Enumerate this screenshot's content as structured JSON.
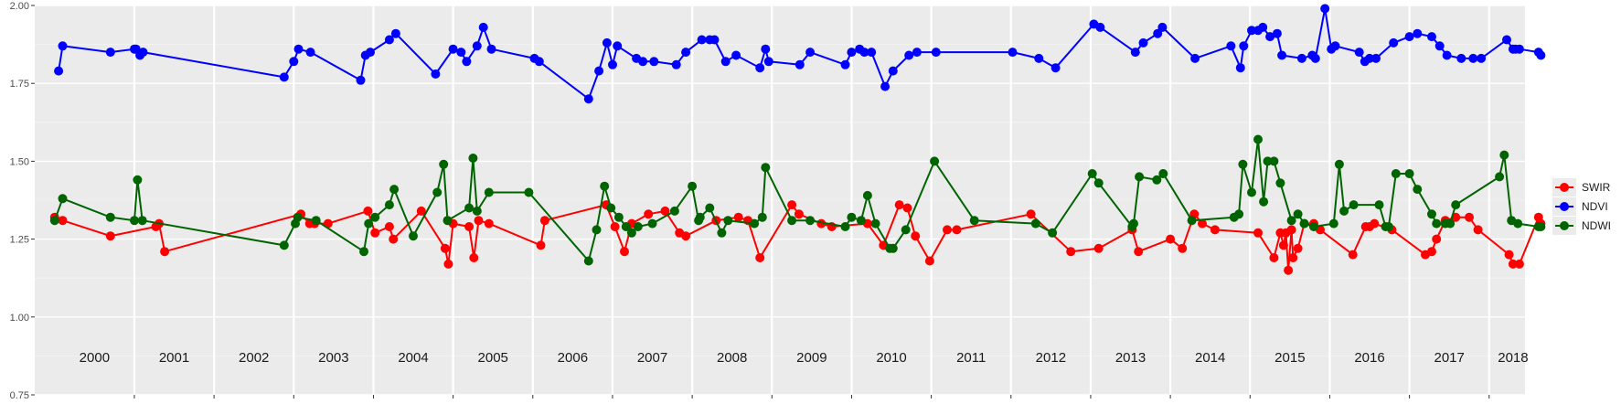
{
  "chart_data": {
    "type": "line",
    "title": "",
    "xlabel": "",
    "ylabel": "",
    "xlim": [
      1999.75,
      2018.45
    ],
    "ylim": [
      0.75,
      2.0
    ],
    "y_ticks": [
      "0.75",
      "1.00",
      "1.25",
      "1.50",
      "1.75",
      "2.00"
    ],
    "year_labels": [
      "2000",
      "2001",
      "2002",
      "2003",
      "2004",
      "2005",
      "2006",
      "2007",
      "2008",
      "2009",
      "2010",
      "2011",
      "2012",
      "2013",
      "2014",
      "2015",
      "2016",
      "2017",
      "2018"
    ],
    "grid": true,
    "legend_position": "right",
    "series": [
      {
        "name": "SWIR",
        "color": "#ff0000",
        "x": [
          2000.0,
          2000.1,
          2000.7,
          2001.27,
          2001.31,
          2001.38,
          2003.09,
          2003.2,
          2003.26,
          2003.43,
          2003.93,
          2004.02,
          2004.2,
          2004.25,
          2004.6,
          2004.9,
          2004.94,
          2005.0,
          2005.2,
          2005.26,
          2005.32,
          2005.45,
          2006.1,
          2006.15,
          2006.92,
          2007.03,
          2007.15,
          2007.24,
          2007.45,
          2007.66,
          2007.84,
          2007.92,
          2008.3,
          2008.58,
          2008.7,
          2008.85,
          2009.25,
          2009.34,
          2009.62,
          2009.75,
          2010.2,
          2010.4,
          2010.6,
          2010.7,
          2010.8,
          2010.98,
          2011.2,
          2011.32,
          2012.25,
          2012.75,
          2013.1,
          2013.52,
          2013.6,
          2014.0,
          2014.15,
          2014.3,
          2014.4,
          2014.56,
          2015.1,
          2015.3,
          2015.38,
          2015.42,
          2015.45,
          2015.48,
          2015.52,
          2015.54,
          2015.6,
          2015.68,
          2015.8,
          2015.88,
          2016.29,
          2016.45,
          2016.5,
          2016.56,
          2016.78,
          2017.2,
          2017.28,
          2017.34,
          2017.45,
          2017.58,
          2017.75,
          2017.86,
          2018.25,
          2018.3,
          2018.38,
          2018.62,
          2018.65
        ],
        "y": [
          1.32,
          1.31,
          1.26,
          1.29,
          1.3,
          1.21,
          1.33,
          1.3,
          1.3,
          1.3,
          1.34,
          1.27,
          1.29,
          1.25,
          1.34,
          1.22,
          1.17,
          1.3,
          1.29,
          1.19,
          1.31,
          1.3,
          1.23,
          1.31,
          1.36,
          1.29,
          1.21,
          1.3,
          1.33,
          1.34,
          1.27,
          1.26,
          1.31,
          1.32,
          1.31,
          1.19,
          1.36,
          1.33,
          1.3,
          1.29,
          1.3,
          1.23,
          1.36,
          1.35,
          1.26,
          1.18,
          1.28,
          1.28,
          1.33,
          1.21,
          1.22,
          1.28,
          1.21,
          1.25,
          1.22,
          1.33,
          1.3,
          1.28,
          1.27,
          1.19,
          1.27,
          1.23,
          1.27,
          1.15,
          1.28,
          1.19,
          1.22,
          1.3,
          1.3,
          1.28,
          1.2,
          1.29,
          1.29,
          1.3,
          1.28,
          1.2,
          1.21,
          1.25,
          1.31,
          1.32,
          1.32,
          1.28,
          1.2,
          1.17,
          1.17,
          1.32,
          1.3
        ],
        "note_y_source": "values read off y-axis"
      },
      {
        "name": "NDVI",
        "color": "#0000ff",
        "x": [
          2000.05,
          2000.1,
          2000.7,
          2001.0,
          2001.02,
          2001.07,
          2001.11,
          2002.88,
          2003.0,
          2003.06,
          2003.21,
          2003.84,
          2003.9,
          2003.96,
          2004.2,
          2004.28,
          2004.78,
          2005.0,
          2005.1,
          2005.17,
          2005.3,
          2005.38,
          2005.48,
          2006.02,
          2006.08,
          2006.7,
          2006.83,
          2006.93,
          2007.0,
          2007.06,
          2007.3,
          2007.38,
          2007.52,
          2007.8,
          2007.92,
          2008.12,
          2008.22,
          2008.28,
          2008.42,
          2008.55,
          2008.85,
          2008.92,
          2008.96,
          2009.35,
          2009.48,
          2009.92,
          2010.0,
          2010.1,
          2010.16,
          2010.25,
          2010.42,
          2010.52,
          2010.72,
          2010.82,
          2011.06,
          2012.02,
          2012.35,
          2012.56,
          2013.04,
          2013.12,
          2013.56,
          2013.66,
          2013.84,
          2013.9,
          2014.31,
          2014.76,
          2014.88,
          2014.92,
          2015.02,
          2015.1,
          2015.16,
          2015.25,
          2015.34,
          2015.4,
          2015.65,
          2015.78,
          2015.82,
          2015.94,
          2016.02,
          2016.07,
          2016.37,
          2016.44,
          2016.5,
          2016.58,
          2016.8,
          2017.0,
          2017.1,
          2017.28,
          2017.38,
          2017.47,
          2017.65,
          2017.8,
          2017.9,
          2018.22,
          2018.3,
          2018.33,
          2018.38,
          2018.62,
          2018.65
        ],
        "y": [
          1.79,
          1.87,
          1.85,
          1.86,
          1.86,
          1.84,
          1.85,
          1.77,
          1.82,
          1.86,
          1.85,
          1.76,
          1.84,
          1.85,
          1.89,
          1.91,
          1.78,
          1.86,
          1.85,
          1.82,
          1.87,
          1.93,
          1.86,
          1.83,
          1.82,
          1.7,
          1.79,
          1.88,
          1.81,
          1.87,
          1.83,
          1.82,
          1.82,
          1.81,
          1.85,
          1.89,
          1.89,
          1.89,
          1.82,
          1.84,
          1.8,
          1.86,
          1.82,
          1.81,
          1.85,
          1.81,
          1.85,
          1.86,
          1.85,
          1.85,
          1.74,
          1.79,
          1.84,
          1.85,
          1.85,
          1.85,
          1.83,
          1.8,
          1.94,
          1.93,
          1.85,
          1.88,
          1.91,
          1.93,
          1.83,
          1.87,
          1.8,
          1.87,
          1.92,
          1.92,
          1.93,
          1.9,
          1.91,
          1.84,
          1.83,
          1.84,
          1.83,
          1.99,
          1.86,
          1.87,
          1.85,
          1.82,
          1.83,
          1.83,
          1.88,
          1.9,
          1.91,
          1.9,
          1.87,
          1.84,
          1.83,
          1.83,
          1.83,
          1.89,
          1.86,
          1.86,
          1.86,
          1.85,
          1.84
        ]
      },
      {
        "name": "NDWI",
        "color": "#006400",
        "x": [
          2000.0,
          2000.1,
          2000.7,
          2001.0,
          2001.04,
          2001.1,
          2002.88,
          2003.02,
          2003.05,
          2003.28,
          2003.88,
          2003.94,
          2004.02,
          2004.2,
          2004.26,
          2004.5,
          2004.8,
          2004.88,
          2004.93,
          2005.2,
          2005.25,
          2005.3,
          2005.45,
          2005.95,
          2006.7,
          2006.8,
          2006.9,
          2006.98,
          2007.08,
          2007.17,
          2007.24,
          2007.32,
          2007.5,
          2007.78,
          2008.0,
          2008.08,
          2008.1,
          2008.22,
          2008.37,
          2008.45,
          2008.78,
          2008.88,
          2008.92,
          2009.25,
          2009.48,
          2009.92,
          2010.0,
          2010.12,
          2010.2,
          2010.3,
          2010.48,
          2010.52,
          2010.68,
          2011.04,
          2011.54,
          2012.31,
          2012.52,
          2013.02,
          2013.1,
          2013.52,
          2013.54,
          2013.61,
          2013.83,
          2013.91,
          2014.27,
          2014.8,
          2014.86,
          2014.91,
          2015.02,
          2015.1,
          2015.17,
          2015.22,
          2015.3,
          2015.38,
          2015.52,
          2015.6,
          2015.68,
          2015.8,
          2016.05,
          2016.12,
          2016.18,
          2016.3,
          2016.62,
          2016.7,
          2016.74,
          2016.83,
          2017.0,
          2017.1,
          2017.28,
          2017.34,
          2017.45,
          2017.51,
          2017.58,
          2018.13,
          2018.19,
          2018.28,
          2018.36,
          2018.62,
          2018.65
        ],
        "y": [
          1.31,
          1.38,
          1.32,
          1.31,
          1.44,
          1.31,
          1.23,
          1.3,
          1.32,
          1.31,
          1.21,
          1.3,
          1.32,
          1.36,
          1.41,
          1.26,
          1.4,
          1.49,
          1.31,
          1.35,
          1.51,
          1.34,
          1.4,
          1.4,
          1.18,
          1.28,
          1.42,
          1.35,
          1.32,
          1.29,
          1.27,
          1.29,
          1.3,
          1.34,
          1.42,
          1.31,
          1.32,
          1.35,
          1.27,
          1.31,
          1.3,
          1.32,
          1.48,
          1.31,
          1.31,
          1.29,
          1.32,
          1.31,
          1.39,
          1.3,
          1.22,
          1.22,
          1.28,
          1.5,
          1.31,
          1.3,
          1.27,
          1.46,
          1.43,
          1.29,
          1.3,
          1.45,
          1.44,
          1.46,
          1.31,
          1.32,
          1.33,
          1.49,
          1.4,
          1.57,
          1.37,
          1.5,
          1.5,
          1.43,
          1.31,
          1.33,
          1.3,
          1.29,
          1.3,
          1.49,
          1.34,
          1.36,
          1.36,
          1.29,
          1.29,
          1.46,
          1.46,
          1.41,
          1.33,
          1.3,
          1.3,
          1.3,
          1.36,
          1.45,
          1.52,
          1.31,
          1.3,
          1.29,
          1.29
        ]
      }
    ]
  }
}
